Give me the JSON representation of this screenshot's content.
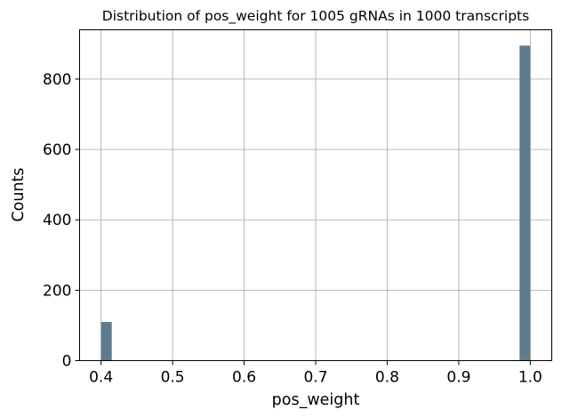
{
  "chart_data": {
    "type": "bar",
    "title": "Distribution of pos_weight for 1005 gRNAs in 1000 transcripts",
    "xlabel": "pos_weight",
    "ylabel": "Counts",
    "xlim": [
      0.37,
      1.03
    ],
    "ylim": [
      0,
      940
    ],
    "x_ticks": [
      0.4,
      0.5,
      0.6,
      0.7,
      0.8,
      0.9,
      1.0
    ],
    "x_tick_labels": [
      "0.4",
      "0.5",
      "0.6",
      "0.7",
      "0.8",
      "0.9",
      "1.0"
    ],
    "y_ticks": [
      0,
      200,
      400,
      600,
      800
    ],
    "y_tick_labels": [
      "0",
      "200",
      "400",
      "600",
      "800"
    ],
    "grid": true,
    "bar_color": "#607b8b",
    "bins": [
      {
        "x_start": 0.4,
        "x_end": 0.415,
        "value": 110
      },
      {
        "x_start": 0.985,
        "x_end": 1.0,
        "value": 895
      }
    ]
  }
}
